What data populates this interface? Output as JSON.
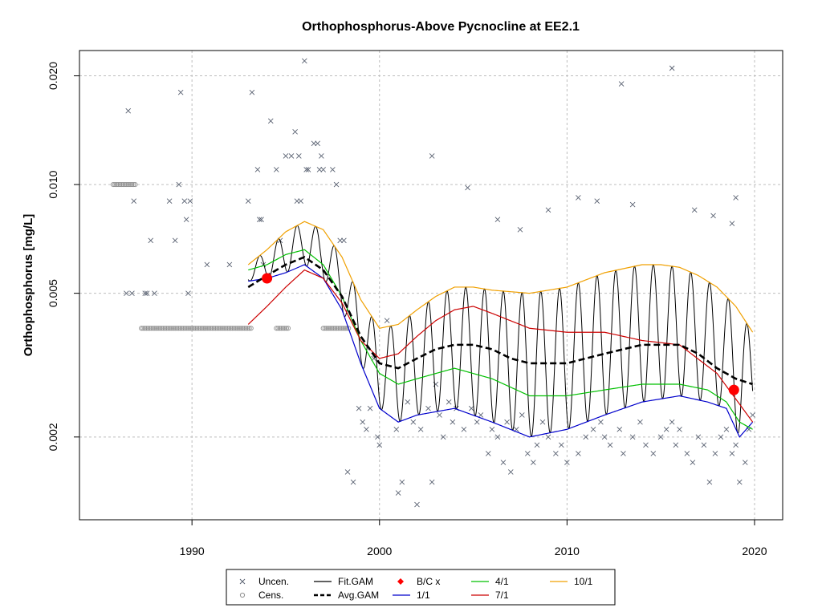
{
  "chart_data": {
    "type": "scatter",
    "title": "Orthophosphorus-Above Pycnocline at EE2.1",
    "ylabel": "Orthophosphorus [mg/L]",
    "xlabel": "",
    "y_scale": "log",
    "xlim": [
      1984,
      2021.5
    ],
    "ylim": [
      0.00118,
      0.0235
    ],
    "x_ticks": [
      {
        "value": 1990,
        "label": "1990"
      },
      {
        "value": 2000,
        "label": "2000"
      },
      {
        "value": 2010,
        "label": "2010"
      },
      {
        "value": 2020,
        "label": "2020"
      }
    ],
    "y_ticks": [
      {
        "value": 0.002,
        "label": "0.002"
      },
      {
        "value": 0.005,
        "label": "0.005"
      },
      {
        "value": 0.01,
        "label": "0.010"
      },
      {
        "value": 0.02,
        "label": "0.020"
      }
    ],
    "grid": true,
    "legend_position": "bottom",
    "colors": {
      "uncensored": "#5a6272",
      "censored": "#909090",
      "fit_gam": "#000000",
      "avg_gam": "#000000",
      "bc_point": "#ff0000",
      "q1": "#0000cc",
      "q4": "#00c000",
      "q7": "#cc0000",
      "q10": "#f0a000",
      "grid": "#bdbdbd"
    },
    "legend": [
      {
        "label": "Uncen.",
        "symbol": "x",
        "color": "#5a6272"
      },
      {
        "label": "Cens.",
        "symbol": "o",
        "color": "#909090"
      },
      {
        "label": "Fit.GAM",
        "symbol": "line",
        "color": "#000000"
      },
      {
        "label": "Avg.GAM",
        "symbol": "dash",
        "color": "#000000"
      },
      {
        "label": "B/C x",
        "symbol": "diamond",
        "color": "#ff0000"
      },
      {
        "label": "1/1",
        "symbol": "line",
        "color": "#0000cc"
      },
      {
        "label": "4/1",
        "symbol": "line",
        "color": "#00c000"
      },
      {
        "label": "7/1",
        "symbol": "line",
        "color": "#cc0000"
      },
      {
        "label": "10/1",
        "symbol": "line",
        "color": "#f0a000"
      }
    ],
    "uncensored": {
      "x": [
        1986.5,
        1986.6,
        1986.8,
        1986.9,
        1987.5,
        1987.6,
        1987.8,
        1988.0,
        1988.8,
        1989.1,
        1989.3,
        1989.4,
        1989.6,
        1989.7,
        1989.8,
        1989.9,
        1990.8,
        1992.0,
        1993.0,
        1993.2,
        1993.5,
        1993.6,
        1993.7,
        1993.8,
        1994.2,
        1994.5,
        1994.7,
        1995.0,
        1995.3,
        1995.5,
        1995.6,
        1995.7,
        1995.8,
        1996.0,
        1996.1,
        1996.2,
        1996.5,
        1996.7,
        1996.8,
        1996.9,
        1997.0,
        1997.5,
        1997.7,
        1997.9,
        1998.1,
        1998.3,
        1998.6,
        1998.9,
        1999.1,
        1999.3,
        1999.5,
        1999.7,
        1999.9,
        2000.0,
        2000.4,
        2000.9,
        2001.0,
        2001.2,
        2001.5,
        2001.8,
        2002.0,
        2002.2,
        2002.6,
        2002.8,
        2003.0,
        2003.2,
        2003.4,
        2003.7,
        2003.9,
        2004.1,
        2004.5,
        2004.9,
        2005.2,
        2005.4,
        2005.8,
        2006.0,
        2006.3,
        2006.6,
        2006.8,
        2007.0,
        2007.3,
        2007.6,
        2007.9,
        2008.2,
        2008.4,
        2008.7,
        2009.0,
        2009.4,
        2009.7,
        2010.0,
        2010.6,
        2011.0,
        2011.4,
        2011.8,
        2012.0,
        2012.3,
        2012.8,
        2013.0,
        2013.5,
        2013.9,
        2014.2,
        2014.6,
        2015.0,
        2015.3,
        2015.6,
        2015.8,
        2016.0,
        2016.4,
        2016.7,
        2017.0,
        2017.3,
        2017.6,
        2017.9,
        2018.2,
        2018.5,
        2018.8,
        2019.0,
        2019.2,
        2019.5,
        2019.7,
        2019.9
      ],
      "y": [
        0.005,
        0.016,
        0.005,
        0.009,
        0.005,
        0.005,
        0.007,
        0.005,
        0.009,
        0.007,
        0.01,
        0.018,
        0.009,
        0.008,
        0.005,
        0.009,
        0.006,
        0.006,
        0.009,
        0.018,
        0.011,
        0.008,
        0.008,
        0.006,
        0.015,
        0.011,
        0.007,
        0.012,
        0.012,
        0.014,
        0.009,
        0.012,
        0.009,
        0.022,
        0.011,
        0.011,
        0.013,
        0.013,
        0.011,
        0.012,
        0.011,
        0.011,
        0.01,
        0.007,
        0.007,
        0.0016,
        0.0015,
        0.0024,
        0.0022,
        0.0021,
        0.0024,
        0.0033,
        0.002,
        0.0019,
        0.0042,
        0.0021,
        0.0014,
        0.0015,
        0.0025,
        0.0022,
        0.0013,
        0.0021,
        0.0024,
        0.0015,
        0.0028,
        0.0023,
        0.002,
        0.0025,
        0.0022,
        0.0024,
        0.0021,
        0.0024,
        0.0022,
        0.0023,
        0.0018,
        0.0021,
        0.002,
        0.0017,
        0.0022,
        0.0016,
        0.0021,
        0.0023,
        0.0018,
        0.0017,
        0.0019,
        0.0022,
        0.002,
        0.0018,
        0.0019,
        0.0017,
        0.0018,
        0.002,
        0.0021,
        0.0022,
        0.002,
        0.0019,
        0.0021,
        0.0018,
        0.002,
        0.0022,
        0.0019,
        0.0018,
        0.002,
        0.0021,
        0.0022,
        0.0019,
        0.0021,
        0.0018,
        0.0017,
        0.002,
        0.0019,
        0.0015,
        0.0018,
        0.002,
        0.0021,
        0.0018,
        0.0019,
        0.0015,
        0.0017,
        0.0021,
        0.0023
      ]
    },
    "uncensored_high_late": {
      "x": [
        2002.8,
        2004.7,
        2006.3,
        2007.5,
        2009.0,
        2010.6,
        2011.6,
        2012.9,
        2013.5,
        2015.6,
        2016.8,
        2017.8,
        2018.8,
        2019.0
      ],
      "y": [
        0.012,
        0.0098,
        0.008,
        0.0075,
        0.0085,
        0.0092,
        0.009,
        0.019,
        0.0088,
        0.021,
        0.0085,
        0.0082,
        0.0078,
        0.0092
      ]
    },
    "censored": {
      "y": 0.004,
      "ranges": [
        [
          1987.3,
          1993.2
        ],
        [
          1994.5,
          1995.2
        ],
        [
          1997.0,
          1998.4
        ]
      ],
      "top_y": 0.01,
      "top_range": [
        1985.8,
        1987.0
      ]
    },
    "bc_points": [
      {
        "x": 1994.0,
        "y": 0.0055
      },
      {
        "x": 2018.9,
        "y": 0.0027
      }
    ],
    "q1": {
      "x": [
        1993.0,
        1994.0,
        1995.0,
        1996.0,
        1997.0,
        1998.0,
        1999.0,
        2000.0,
        2001.0,
        2002.0,
        2004.0,
        2006.0,
        2008.0,
        2010.0,
        2012.0,
        2014.0,
        2016.0,
        2017.5,
        2018.5,
        2019.2,
        2019.9
      ],
      "y": [
        0.0054,
        0.0055,
        0.0057,
        0.006,
        0.0055,
        0.0045,
        0.0032,
        0.0024,
        0.0022,
        0.0023,
        0.0024,
        0.0022,
        0.002,
        0.0021,
        0.0023,
        0.0025,
        0.0026,
        0.0025,
        0.0024,
        0.002,
        0.0022
      ]
    },
    "q4": {
      "x": [
        1993.0,
        1994.0,
        1995.0,
        1996.0,
        1997.0,
        1998.0,
        1999.0,
        2000.0,
        2001.0,
        2002.0,
        2004.0,
        2006.0,
        2008.0,
        2010.0,
        2012.0,
        2014.0,
        2016.0,
        2017.5,
        2018.5,
        2019.2,
        2019.9
      ],
      "y": [
        0.0058,
        0.006,
        0.0064,
        0.0066,
        0.006,
        0.0049,
        0.0037,
        0.003,
        0.0028,
        0.0029,
        0.0031,
        0.0029,
        0.0026,
        0.0026,
        0.0027,
        0.0028,
        0.0028,
        0.0027,
        0.0025,
        0.0022,
        0.0021
      ]
    },
    "q7": {
      "x": [
        1993.0,
        1994.0,
        1995.0,
        1996.0,
        1997.0,
        1998.0,
        1999.0,
        2000.0,
        2001.0,
        2002.0,
        2003.0,
        2004.0,
        2005.0,
        2006.0,
        2008.0,
        2010.0,
        2012.0,
        2014.0,
        2016.0,
        2018.0,
        2019.9
      ],
      "y": [
        0.0041,
        0.0046,
        0.0052,
        0.0058,
        0.0055,
        0.0047,
        0.0037,
        0.0033,
        0.0034,
        0.0038,
        0.0042,
        0.0045,
        0.0046,
        0.0044,
        0.004,
        0.0039,
        0.0039,
        0.0037,
        0.0036,
        0.003,
        0.0022
      ]
    },
    "q10": {
      "x": [
        1993.0,
        1994.0,
        1995.0,
        1996.0,
        1997.0,
        1998.0,
        1999.0,
        2000.0,
        2001.0,
        2002.0,
        2003.0,
        2004.0,
        2005.0,
        2006.0,
        2008.0,
        2010.0,
        2012.0,
        2014.0,
        2015.0,
        2016.0,
        2017.0,
        2018.0,
        2019.0,
        2019.9
      ],
      "y": [
        0.006,
        0.0066,
        0.0074,
        0.0079,
        0.0075,
        0.0063,
        0.0048,
        0.004,
        0.0041,
        0.0045,
        0.0049,
        0.0052,
        0.0052,
        0.0051,
        0.005,
        0.0052,
        0.0057,
        0.006,
        0.006,
        0.0059,
        0.0056,
        0.0052,
        0.0046,
        0.0039
      ]
    },
    "avg_gam": {
      "x": [
        1993.0,
        1994.0,
        1995.0,
        1996.0,
        1997.0,
        1998.0,
        1999.0,
        2000.0,
        2001.0,
        2002.0,
        2003.0,
        2004.0,
        2005.0,
        2006.0,
        2007.0,
        2008.0,
        2009.0,
        2010.0,
        2011.0,
        2012.0,
        2013.0,
        2014.0,
        2015.0,
        2016.0,
        2017.0,
        2018.0,
        2019.0,
        2019.9
      ],
      "y": [
        0.0052,
        0.0056,
        0.006,
        0.0063,
        0.0058,
        0.0049,
        0.0038,
        0.0032,
        0.0031,
        0.0033,
        0.0035,
        0.0036,
        0.0036,
        0.0035,
        0.0033,
        0.0032,
        0.0032,
        0.0032,
        0.0033,
        0.0034,
        0.0035,
        0.0036,
        0.0036,
        0.0036,
        0.0034,
        0.0031,
        0.0029,
        0.0028
      ]
    }
  }
}
